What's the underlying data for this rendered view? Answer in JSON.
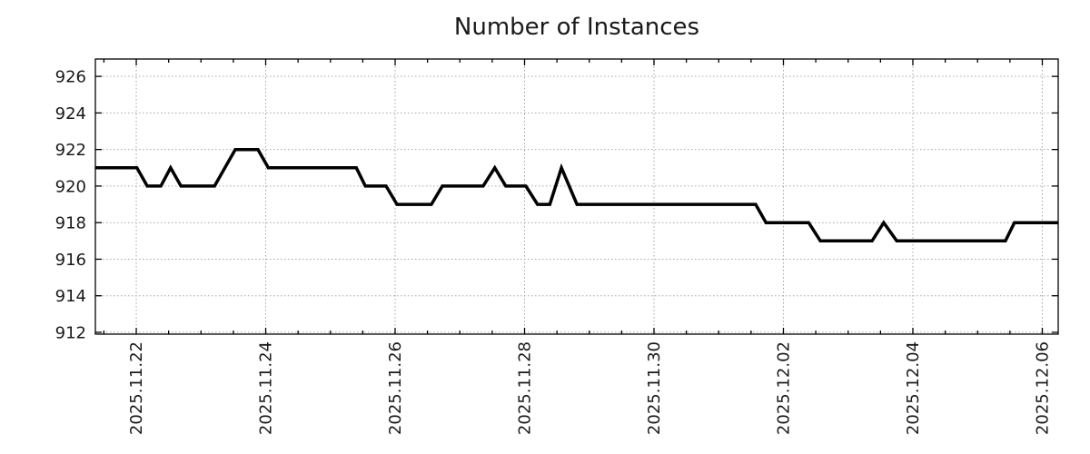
{
  "chart_data": {
    "type": "line",
    "title": "Number of Instances",
    "xlabel": "",
    "ylabel": "",
    "x_unit": "days since 2025-11-21 00:00",
    "xlim": [
      0.368,
      15.246
    ],
    "ylim": [
      911.9,
      926.95
    ],
    "grid": true,
    "legend": false,
    "y_ticks": [
      912,
      914,
      916,
      918,
      920,
      922,
      924,
      926
    ],
    "x_major_ticks": [
      {
        "pos": 1,
        "label": "2025.11.22"
      },
      {
        "pos": 3,
        "label": "2025.11.24"
      },
      {
        "pos": 5,
        "label": "2025.11.26"
      },
      {
        "pos": 7,
        "label": "2025.11.28"
      },
      {
        "pos": 9,
        "label": "2025.11.30"
      },
      {
        "pos": 11,
        "label": "2025.12.02"
      },
      {
        "pos": 13,
        "label": "2025.12.04"
      },
      {
        "pos": 15,
        "label": "2025.12.06"
      }
    ],
    "x_minor_tick_step": 0.5,
    "series": [
      {
        "name": "instances",
        "color": "#000000",
        "line_width": 3.5,
        "points": [
          [
            0.37,
            921
          ],
          [
            1.01,
            921
          ],
          [
            1.17,
            920
          ],
          [
            1.38,
            920
          ],
          [
            1.53,
            921
          ],
          [
            1.69,
            920
          ],
          [
            2.21,
            920
          ],
          [
            2.53,
            922
          ],
          [
            2.88,
            922
          ],
          [
            3.04,
            921
          ],
          [
            4.4,
            921
          ],
          [
            4.54,
            920
          ],
          [
            4.86,
            920
          ],
          [
            5.03,
            919
          ],
          [
            5.56,
            919
          ],
          [
            5.73,
            920
          ],
          [
            6.36,
            920
          ],
          [
            6.54,
            921
          ],
          [
            6.71,
            920
          ],
          [
            7.02,
            920
          ],
          [
            7.2,
            919
          ],
          [
            7.39,
            919
          ],
          [
            7.57,
            921
          ],
          [
            7.81,
            919
          ],
          [
            10.57,
            919
          ],
          [
            10.73,
            918
          ],
          [
            11.39,
            918
          ],
          [
            11.57,
            917
          ],
          [
            12.37,
            917
          ],
          [
            12.55,
            918
          ],
          [
            12.75,
            917
          ],
          [
            14.43,
            917
          ],
          [
            14.57,
            918
          ],
          [
            15.25,
            918
          ]
        ]
      }
    ]
  },
  "colors": {
    "background": "#ffffff",
    "grid": "#a6a6a6",
    "axis": "#000000",
    "text": "#1a1a1a"
  }
}
